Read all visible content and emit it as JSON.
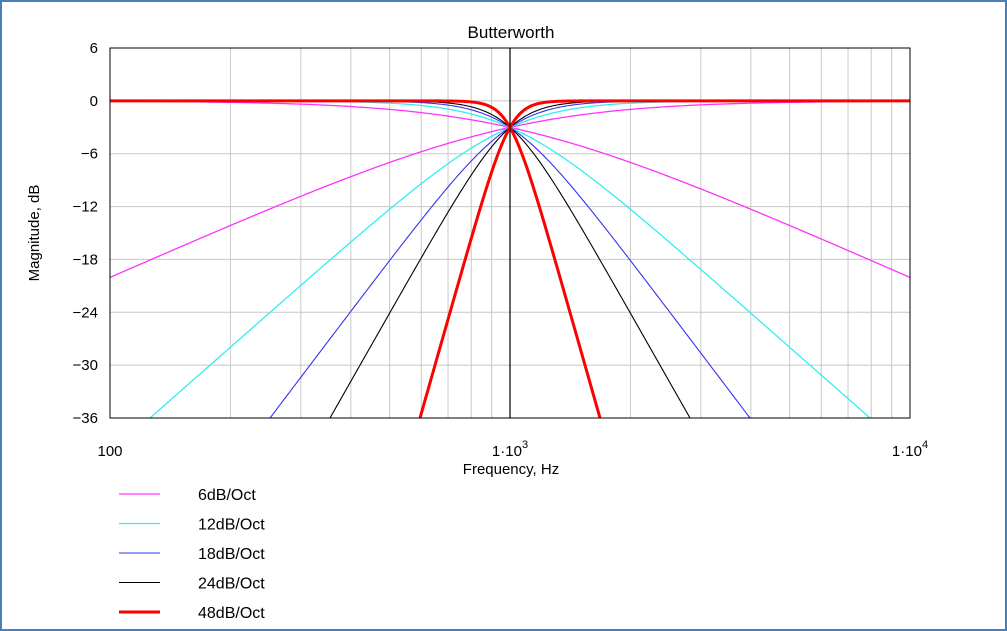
{
  "chart_data": {
    "type": "line",
    "title": "Butterworth",
    "xlabel": "Frequency, Hz",
    "ylabel": "Magnitude, dB",
    "xscale": "log",
    "xlim": [
      100,
      10000
    ],
    "ylim": [
      -36,
      6
    ],
    "xticks": [
      {
        "value": 100,
        "base": "100",
        "exp": ""
      },
      {
        "value": 1000,
        "base": "1·10",
        "exp": "3"
      },
      {
        "value": 10000,
        "base": "1·10",
        "exp": "4"
      }
    ],
    "yticks": [
      {
        "value": 6,
        "label": "6"
      },
      {
        "value": 0,
        "label": "0"
      },
      {
        "value": -6,
        "label": "−6"
      },
      {
        "value": -12,
        "label": "−12"
      },
      {
        "value": -18,
        "label": "−18"
      },
      {
        "value": -24,
        "label": "−24"
      },
      {
        "value": -30,
        "label": "−30"
      },
      {
        "value": -36,
        "label": "−36"
      }
    ],
    "grid": true,
    "crossover_hz": 1000,
    "legend_position": "bottom-left",
    "series": [
      {
        "name": "6dB/Oct",
        "order": 1,
        "color": "#ff33ff",
        "width": 1.3
      },
      {
        "name": "12dB/Oct",
        "order": 2,
        "color": "#33eeee",
        "width": 1.3
      },
      {
        "name": "18dB/Oct",
        "order": 3,
        "color": "#3333ee",
        "width": 1.1
      },
      {
        "name": "24dB/Oct",
        "order": 4,
        "color": "#000000",
        "width": 1.1
      },
      {
        "name": "48dB/Oct",
        "order": 8,
        "color": "#ff0000",
        "width": 3
      }
    ]
  }
}
